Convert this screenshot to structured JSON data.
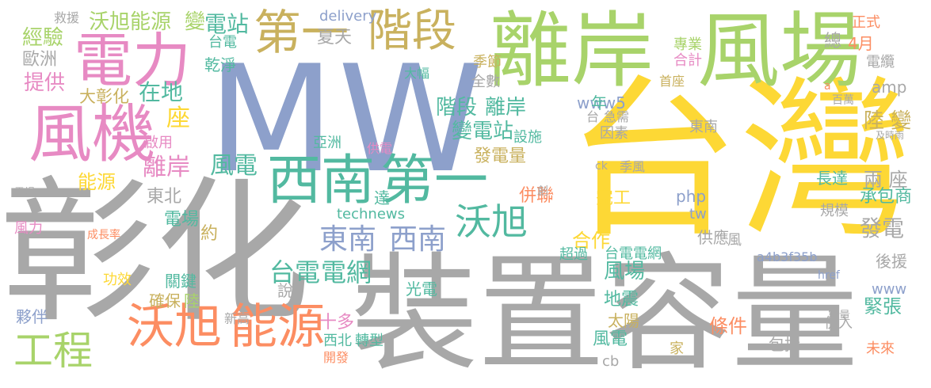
{
  "palette": {
    "gray": "#a8a8a8",
    "yellow": "#fdd835",
    "green": "#a8d36a",
    "teal": "#52b9a0",
    "pink": "#e78ac3",
    "blue": "#8da0cb",
    "orange": "#fc8d62",
    "olive": "#c9b15e"
  },
  "words": [
    "彰化",
    "裝置容量",
    "台灣",
    "MW",
    "離岸",
    "風場",
    "電力",
    "第一",
    "階段",
    "風機",
    "西南",
    "第一",
    "沃旭",
    "能源",
    "沃旭",
    "東南",
    "西南",
    "工程",
    "台電",
    "電網",
    "電站",
    "夏天",
    "變",
    "經驗",
    "歐洲",
    "提供",
    "大彰化",
    "在地",
    "座",
    "離岸",
    "風電",
    "能源",
    "東北",
    "電場",
    "約",
    "夥伴",
    "確保",
    "陸",
    "功效",
    "關鍵",
    "說",
    "新高",
    "十多",
    "西北",
    "轉型",
    "開發",
    "光電",
    "風場",
    "地震",
    "太陽",
    "風電",
    "條件",
    "包括",
    "併入",
    "未來",
    "緊張",
    "後援",
    "發電",
    "兩 座",
    "承包商",
    "規模",
    "長達",
    "供應",
    "合作",
    "完工",
    "併聯",
    "設施",
    "發電量",
    "變電站",
    "離岸",
    "階段",
    "全數",
    "季節",
    "乾淨",
    "台電",
    "電站",
    "沃旭能源",
    "delivery",
    "救援",
    "www5",
    "因素",
    "急需",
    "東南",
    "首座",
    "合計",
    "專業",
    "正式",
    "總",
    "電纜",
    "4月",
    "amp",
    "陸 變",
    "php",
    "tw",
    "technews",
    "亞洲",
    "供電",
    "達",
    "成長率",
    "風力",
    "啟用",
    "台電電網",
    "超過",
    "a4b3f35b",
    "href",
    "www",
    "容量",
    "家",
    "cb",
    "ck",
    "季風",
    "a",
    "百萬",
    "及時雨",
    "年",
    "台",
    "大幅",
    "風",
    "電場",
    "創"
  ]
}
